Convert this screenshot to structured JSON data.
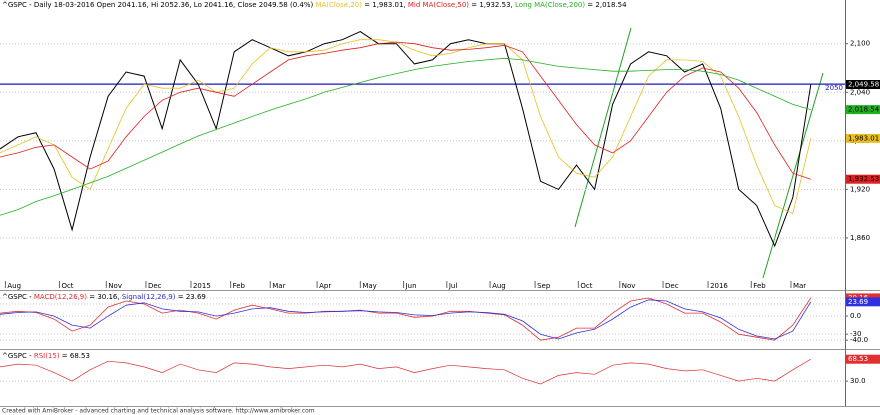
{
  "chart_data": [
    {
      "type": "line",
      "header": [
        {
          "text": "^GSPC - Daily 18-03-2016 Open 2041.16, Hi 2052.36, Lo 2041.16, Close 2049.58 (0.4%) ",
          "color": "#000000"
        },
        {
          "text": "MA(Close,20)",
          "color": "#e8c020"
        },
        {
          "text": " = 1,983.01, ",
          "color": "#000000"
        },
        {
          "text": "Mid MA(Close,50)",
          "color": "#e02020"
        },
        {
          "text": " = 1,932.53, ",
          "color": "#000000"
        },
        {
          "text": "Long MA(Close,200)",
          "color": "#22b022"
        },
        {
          "text": " = 2,018.54",
          "color": "#000000"
        }
      ],
      "xlim": [
        0,
        46.9
      ],
      "ylim": [
        1808,
        2154
      ],
      "xticks": [
        {
          "value": 0.3,
          "label": "Aug"
        },
        {
          "value": 3.3,
          "label": "Oct"
        },
        {
          "value": 5.9,
          "label": "Nov"
        },
        {
          "value": 8.1,
          "label": "Dec"
        },
        {
          "value": 10.6,
          "label": "2015"
        },
        {
          "value": 12.8,
          "label": "Feb"
        },
        {
          "value": 15,
          "label": "Mar"
        },
        {
          "value": 17.6,
          "label": "Apr"
        },
        {
          "value": 20,
          "label": "May"
        },
        {
          "value": 22.4,
          "label": "Jun"
        },
        {
          "value": 24.8,
          "label": "Jul"
        },
        {
          "value": 27.2,
          "label": "Aug"
        },
        {
          "value": 29.7,
          "label": "Sep"
        },
        {
          "value": 32.1,
          "label": "Oct"
        },
        {
          "value": 34.4,
          "label": "Nov"
        },
        {
          "value": 36.8,
          "label": "Dec"
        },
        {
          "value": 39.3,
          "label": "2016"
        },
        {
          "value": 41.7,
          "label": "Feb"
        },
        {
          "value": 43.9,
          "label": "Mar"
        }
      ],
      "yticks": [
        {
          "value": 1860,
          "label": "1,860"
        },
        {
          "value": 1920,
          "label": "1,920"
        },
        {
          "value": 1980,
          "label": "1,980"
        },
        {
          "value": 2040,
          "label": "2,040"
        },
        {
          "value": 2100,
          "label": "2,100"
        }
      ],
      "grid": true,
      "hline": {
        "value": 2050,
        "label": "2050",
        "color": "#1818c0"
      },
      "series": [
        {
          "color": "#000000",
          "label": "2,049.58",
          "label_color": "#ffffff",
          "width": 1,
          "values": [
            1970,
            1985,
            1990,
            1945,
            1870,
            1960,
            2035,
            2065,
            2060,
            1995,
            2080,
            2050,
            1995,
            2090,
            2105,
            2095,
            2085,
            2090,
            2100,
            2105,
            2115,
            2100,
            2100,
            2075,
            2080,
            2100,
            2105,
            2100,
            2100,
            2020,
            1930,
            1920,
            1950,
            1920,
            2025,
            2075,
            2090,
            2085,
            2065,
            2075,
            2020,
            1920,
            1900,
            1850,
            1910,
            2049.58
          ]
        },
        {
          "color": "#e8c020",
          "label": "1,983.01",
          "label_color": "#000000",
          "width": 0.8,
          "values": [
            1965,
            1975,
            1985,
            1975,
            1935,
            1920,
            1970,
            2020,
            2050,
            2045,
            2045,
            2055,
            2040,
            2045,
            2075,
            2095,
            2090,
            2090,
            2092,
            2100,
            2105,
            2105,
            2102,
            2092,
            2085,
            2088,
            2095,
            2100,
            2100,
            2080,
            2010,
            1960,
            1940,
            1935,
            1960,
            2010,
            2060,
            2080,
            2080,
            2078,
            2060,
            2010,
            1950,
            1900,
            1890,
            1983.01
          ]
        },
        {
          "color": "#e02020",
          "label": "1,932.53",
          "label_color": "#000000",
          "width": 0.8,
          "values": [
            1960,
            1965,
            1972,
            1975,
            1960,
            1945,
            1955,
            1985,
            2010,
            2030,
            2040,
            2045,
            2040,
            2035,
            2050,
            2065,
            2080,
            2085,
            2088,
            2092,
            2095,
            2100,
            2102,
            2100,
            2095,
            2092,
            2093,
            2095,
            2098,
            2090,
            2060,
            2030,
            2000,
            1975,
            1965,
            1980,
            2010,
            2040,
            2060,
            2070,
            2065,
            2045,
            2015,
            1975,
            1940,
            1932.53
          ]
        },
        {
          "color": "#22b022",
          "label": "2,018.54",
          "label_color": "#000000",
          "width": 0.8,
          "values": [
            1888,
            1895,
            1905,
            1912,
            1920,
            1928,
            1936,
            1946,
            1956,
            1966,
            1976,
            1986,
            1994,
            2002,
            2010,
            2018,
            2025,
            2032,
            2040,
            2046,
            2052,
            2058,
            2063,
            2068,
            2072,
            2075,
            2078,
            2080,
            2082,
            2080,
            2076,
            2072,
            2070,
            2068,
            2066,
            2066,
            2067,
            2068,
            2068,
            2066,
            2062,
            2055,
            2045,
            2035,
            2025,
            2018.54
          ]
        }
      ]
    },
    {
      "type": "line",
      "header": [
        {
          "text": "^GSPC - ",
          "color": "#000000"
        },
        {
          "text": "MACD(12,26,9)",
          "color": "#e03030"
        },
        {
          "text": " = 30.16, ",
          "color": "#000000"
        },
        {
          "text": "Signal(12,26,9)",
          "color": "#3030e0"
        },
        {
          "text": " = 23.69",
          "color": "#000000"
        }
      ],
      "xlim": [
        0,
        46.9
      ],
      "ylim": [
        -53,
        40
      ],
      "yticks": [
        {
          "value": -40,
          "label": "-40.0"
        },
        -30,
        {
          "value": 0,
          "label": "0.0"
        },
        20,
        {
          "value": 30,
          "label": "30.0"
        }
      ],
      "grid": true,
      "series": [
        {
          "color": "#e03030",
          "label": "30.16",
          "label_color": "#ffffff",
          "width": 0.8,
          "values": [
            5,
            8,
            6,
            -5,
            -25,
            -15,
            15,
            25,
            20,
            5,
            10,
            5,
            -5,
            10,
            18,
            12,
            5,
            5,
            8,
            8,
            10,
            5,
            5,
            -2,
            0,
            8,
            8,
            5,
            2,
            -15,
            -40,
            -35,
            -20,
            -20,
            5,
            25,
            30,
            20,
            5,
            5,
            -10,
            -30,
            -35,
            -40,
            -15,
            30.16
          ]
        },
        {
          "color": "#3030e0",
          "label": "23.69",
          "label_color": "#ffffff",
          "width": 0.8,
          "values": [
            3,
            6,
            7,
            0,
            -15,
            -20,
            0,
            18,
            22,
            12,
            8,
            7,
            0,
            5,
            12,
            14,
            8,
            6,
            7,
            8,
            9,
            7,
            6,
            2,
            1,
            5,
            7,
            6,
            3,
            -8,
            -30,
            -38,
            -28,
            -22,
            -5,
            15,
            27,
            25,
            12,
            7,
            -3,
            -22,
            -33,
            -38,
            -25,
            23.69
          ]
        }
      ]
    },
    {
      "type": "line",
      "header": [
        {
          "text": "^GSPC - ",
          "color": "#000000"
        },
        {
          "text": "RSI(15)",
          "color": "#e03030"
        },
        {
          "text": " = 68.53",
          "color": "#000000"
        }
      ],
      "xlim": [
        0,
        46.9
      ],
      "ylim": [
        -12,
        83
      ],
      "yticks": [
        {
          "value": 30,
          "label": "30.0"
        }
      ],
      "grid": true,
      "series": [
        {
          "color": "#e03030",
          "label": "68.53",
          "label_color": "#ffffff",
          "width": 0.7,
          "values": [
            55,
            60,
            58,
            45,
            30,
            50,
            65,
            62,
            55,
            45,
            60,
            50,
            45,
            62,
            60,
            55,
            52,
            55,
            58,
            55,
            60,
            52,
            55,
            45,
            52,
            58,
            55,
            52,
            50,
            35,
            25,
            40,
            45,
            42,
            58,
            62,
            60,
            52,
            48,
            50,
            40,
            30,
            35,
            30,
            50,
            68.53
          ]
        }
      ]
    }
  ],
  "footer": "Created with AmiBroker - advanced charting and technical analysis software. http://www.amibroker.com"
}
